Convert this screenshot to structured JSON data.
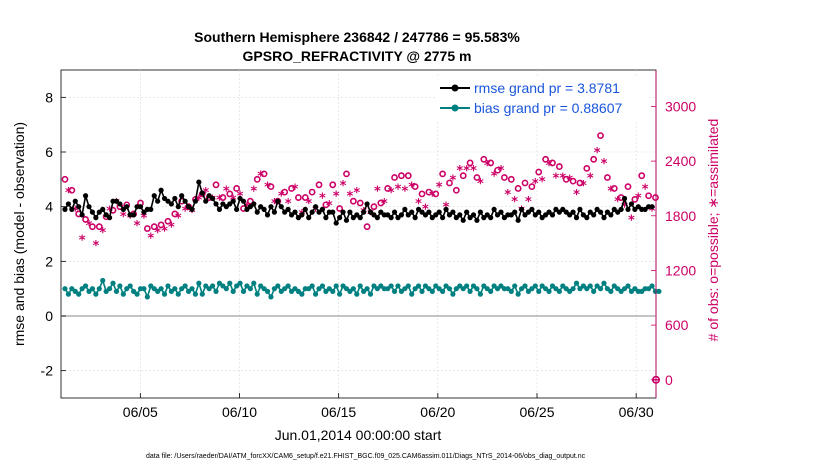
{
  "chart_data": {
    "type": "line",
    "title": [
      "Southern Hemisphere 236842 / 247786 = 95.583%",
      "GPSRO_REFRACTIVITY @ 2775 m"
    ],
    "xlabel": "Jun.01,2014 00:00:00 start",
    "ylabel": "rmse and bias (model - observation)",
    "ylabel_right": "# of obs: o=possible; ∗=assimilated",
    "footnote": "data file: /Users/raeder/DAI/ATM_forcXX/CAM6_setup/f.e21.FHIST_BGC.f09_025.CAM6assim.011/Diags_NTrS_2014-06/obs_diag_output.nc",
    "xlim": [
      1,
      31
    ],
    "ylim": [
      -3,
      9
    ],
    "ylim_right": [
      -200,
      3400
    ],
    "x_ticks": [
      5,
      10,
      15,
      20,
      25,
      30
    ],
    "x_tick_labels": [
      "06/05",
      "06/10",
      "06/15",
      "06/20",
      "06/25",
      "06/30"
    ],
    "y_ticks": [
      -2,
      0,
      2,
      4,
      6,
      8
    ],
    "y_tick_labels": [
      "-2",
      "0",
      "2",
      "4",
      "6",
      "8"
    ],
    "y_right_ticks": [
      0,
      600,
      1200,
      1800,
      2400,
      3000
    ],
    "y_right_tick_labels": [
      "0",
      "600",
      "1200",
      "1800",
      "2400",
      "3000"
    ],
    "grid": true,
    "legend_position": "top-right",
    "colors": {
      "rmse": "#000000",
      "bias": "#008080",
      "obs": "#cc0066",
      "zero_line": "#b0b0b0"
    },
    "series": [
      {
        "name": "rmse grand pr = 3.8781",
        "values": [
          3.9,
          4.1,
          3.9,
          4.2,
          4.0,
          3.7,
          4.4,
          4.0,
          3.8,
          3.6,
          3.8,
          3.9,
          3.7,
          3.6,
          4.2,
          4.2,
          4.1,
          3.9,
          4.0,
          3.7,
          3.7,
          4.0,
          4.0,
          3.8,
          3.9,
          3.9,
          4.4,
          4.2,
          4.6,
          4.3,
          4.2,
          4.1,
          4.3,
          4.0,
          4.4,
          4.2,
          4.0,
          3.9,
          4.2,
          4.9,
          4.5,
          4.2,
          4.4,
          4.3,
          4.1,
          3.9,
          4.1,
          4.0,
          4.1,
          4.2,
          3.9,
          4.3,
          4.2,
          3.9,
          4.0,
          4.1,
          3.8,
          4.0,
          3.9,
          3.7,
          4.0,
          3.8,
          4.2,
          4.0,
          3.8,
          3.9,
          3.7,
          3.8,
          3.6,
          3.7,
          3.9,
          3.6,
          3.8,
          4.0,
          3.8,
          3.9,
          3.6,
          3.8,
          3.8,
          3.4,
          3.6,
          3.8,
          3.5,
          3.8,
          3.6,
          3.7,
          3.6,
          3.8,
          4.1,
          3.8,
          3.7,
          3.6,
          3.8,
          3.7,
          3.7,
          3.6,
          3.8,
          3.6,
          3.7,
          3.9,
          3.7,
          3.8,
          3.6,
          3.9,
          3.8,
          3.7,
          3.8,
          3.6,
          3.7,
          3.8,
          3.6,
          3.9,
          3.7,
          3.8,
          3.6,
          3.7,
          3.5,
          3.8,
          3.6,
          3.7,
          3.5,
          3.8,
          3.6,
          3.7,
          3.6,
          3.9,
          3.7,
          3.8,
          3.6,
          3.7,
          3.7,
          3.8,
          3.5,
          3.9,
          3.7,
          3.8,
          3.9,
          3.7,
          3.8,
          3.6,
          3.7,
          3.8,
          3.7,
          3.9,
          3.8,
          3.9,
          3.8,
          3.7,
          3.8,
          3.6,
          3.9,
          3.7,
          3.6,
          3.8,
          3.7,
          3.9,
          3.8,
          3.6,
          3.8,
          3.7,
          3.9,
          3.8,
          3.9,
          4.3,
          3.9,
          4.1,
          3.9,
          4.0,
          3.9,
          3.9,
          4.0,
          4.0
        ]
      },
      {
        "name": "bias grand pr = 0.88607",
        "values": [
          1.0,
          0.8,
          1.0,
          0.9,
          0.8,
          1.0,
          1.1,
          0.9,
          1.0,
          0.8,
          1.0,
          1.3,
          0.9,
          1.0,
          1.2,
          0.9,
          1.1,
          0.8,
          1.0,
          1.1,
          0.9,
          0.8,
          1.0,
          1.0,
          0.7,
          1.1,
          1.0,
          0.9,
          1.0,
          0.8,
          1.1,
          0.9,
          1.0,
          0.8,
          1.0,
          1.1,
          0.9,
          1.0,
          0.8,
          1.2,
          0.8,
          1.1,
          1.0,
          1.1,
          0.9,
          1.2,
          1.1,
          1.0,
          1.2,
          0.9,
          1.1,
          1.2,
          0.9,
          1.1,
          1.0,
          1.2,
          0.8,
          1.1,
          1.0,
          0.9,
          0.7,
          1.0,
          1.1,
          0.9,
          1.0,
          1.1,
          0.9,
          1.0,
          0.9,
          0.8,
          1.0,
          1.0,
          1.1,
          0.8,
          1.0,
          1.1,
          0.9,
          1.0,
          0.9,
          1.1,
          0.8,
          1.1,
          1.0,
          0.9,
          1.0,
          0.8,
          1.1,
          0.9,
          1.0,
          0.8,
          1.1,
          1.0,
          1.1,
          1.0,
          1.0,
          1.1,
          0.9,
          1.1,
          0.9,
          1.0,
          1.1,
          0.8,
          1.0,
          1.1,
          0.9,
          1.1,
          1.0,
          0.9,
          1.1,
          1.0,
          0.9,
          1.1,
          1.0,
          0.8,
          1.0,
          1.1,
          1.0,
          1.1,
          0.9,
          1.1,
          1.0,
          0.8,
          1.1,
          1.0,
          0.9,
          1.1,
          1.0,
          1.1,
          1.0,
          1.0,
          0.9,
          1.1,
          0.8,
          1.0,
          1.1,
          0.9,
          1.0,
          1.1,
          0.9,
          1.1,
          1.0,
          0.9,
          1.1,
          1.0,
          0.9,
          1.1,
          1.0,
          0.9,
          1.0,
          1.2,
          1.0,
          1.1,
          1.0,
          1.1,
          0.9,
          1.1,
          1.0,
          1.2,
          1.0,
          0.9,
          1.1,
          1.0,
          0.9,
          1.0,
          1.1,
          0.9,
          1.0,
          0.9,
          0.9,
          1.0,
          1.0,
          1.1,
          0.9,
          0.9
        ]
      },
      {
        "name": "# of obs possible",
        "values": [
          2200,
          2140,
          2080,
          2000,
          1820,
          1650,
          1760,
          1780,
          1680,
          1560,
          1680,
          1680,
          1790,
          1940,
          1860,
          2020,
          1900,
          1860,
          1920,
          1840,
          1820,
          1780,
          1940,
          1840,
          1660,
          1620,
          1680,
          1680,
          1700,
          1720,
          1740,
          1760,
          1820,
          1860,
          1960,
          1940,
          1900,
          1920,
          1980,
          2060,
          2040,
          2140,
          2000,
          2060,
          2140,
          2060,
          2000,
          2160,
          2040,
          2060,
          2100,
          2100,
          1880,
          1980,
          1960,
          2160,
          2200,
          2320,
          2260,
          2200,
          2120,
          2020,
          1960,
          2100,
          2060,
          2020,
          2100,
          2180,
          2000,
          1900,
          2000,
          2020,
          2060,
          1940,
          2140,
          2080,
          1920,
          2000,
          2140,
          2100,
          1880,
          2220,
          2260,
          2100,
          1960,
          2140,
          1940,
          1920,
          1680,
          1900,
          1900,
          2160,
          1940,
          2020,
          2100,
          2140,
          2220,
          2180,
          2240,
          2160,
          2240,
          2200,
          2120,
          2020,
          2040,
          1960,
          2060,
          2100,
          2040,
          2200,
          2260,
          1980,
          2160,
          2280,
          2080,
          2380,
          2240,
          2380,
          2380,
          2380,
          2220,
          2240,
          2420,
          2440,
          2380,
          2320,
          2300,
          2380,
          2220,
          2120,
          2200,
          2040,
          2100,
          1940,
          2160,
          2040,
          2120,
          2240,
          2280,
          2260,
          2420,
          2440,
          2380,
          2300,
          2340,
          2300,
          2200,
          2280,
          2180,
          2120,
          2160,
          2220,
          2320,
          2300,
          2420,
          2580,
          2680,
          2460,
          2220,
          2160,
          2100,
          2040,
          2000,
          1980,
          2120,
          1840,
          1980,
          2080,
          2240,
          2180,
          2020,
          1940,
          2000
        ]
      },
      {
        "name": "# of obs assimilated",
        "values": [
          2100,
          2060,
          2000,
          1860,
          1720,
          1540,
          1660,
          1700,
          1600,
          1480,
          1620,
          1620,
          1700,
          1860,
          1780,
          1940,
          1820,
          1800,
          1840,
          1780,
          1740,
          1700,
          1860,
          1780,
          1580,
          1560,
          1600,
          1620,
          1620,
          1640,
          1680,
          1680,
          1740,
          1780,
          1880,
          1860,
          1820,
          1840,
          1900,
          1980,
          1960,
          2060,
          1920,
          1980,
          2060,
          1980,
          1920,
          2080,
          1960,
          1980,
          2020,
          2020,
          1800,
          1900,
          1880,
          2080,
          2120,
          2240,
          2180,
          2120,
          2040,
          1940,
          1880,
          2020,
          1980,
          1940,
          2020,
          2100,
          1920,
          1820,
          1920,
          1940,
          1980,
          1860,
          2060,
          2000,
          1840,
          1920,
          2060,
          2020,
          1800,
          2140,
          2180,
          2020,
          1880,
          2060,
          1860,
          1840,
          1600,
          1820,
          1820,
          2080,
          1860,
          1940,
          2020,
          2060,
          2140,
          2100,
          2160,
          2080,
          2160,
          2120,
          2040,
          1940,
          1960,
          1880,
          1980,
          2020,
          1960,
          2120,
          2180,
          1900,
          2080,
          2200,
          2000,
          2300,
          2160,
          2300,
          2300,
          2300,
          2140,
          2160,
          2340,
          2360,
          2300,
          2240,
          2220,
          2300,
          2140,
          2040,
          2120,
          1960,
          2020,
          1860,
          2080,
          1960,
          2040,
          2160,
          2200,
          2180,
          2340,
          2360,
          2300,
          2220,
          2260,
          2220,
          2120,
          2200,
          2100,
          2040,
          2080,
          2140,
          2240,
          2220,
          2340,
          2500,
          2600,
          2380,
          2140,
          2080,
          2020,
          1960,
          1920,
          1900,
          2040,
          1760,
          1900,
          2000,
          2160,
          2100,
          1940,
          1860,
          1920
        ]
      }
    ]
  }
}
